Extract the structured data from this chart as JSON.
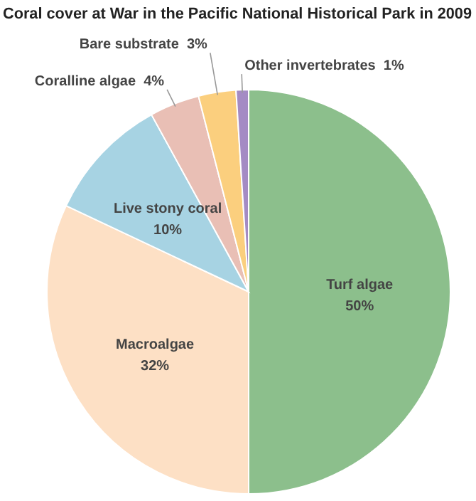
{
  "chart_data": {
    "type": "pie",
    "title": "Coral cover at War in the Pacific National Historical Park in 2009",
    "categories": [
      "Turf algae",
      "Macroalgae",
      "Live stony coral",
      "Coralline algae",
      "Bare substrate",
      "Other invertebrates"
    ],
    "values": [
      50,
      32,
      10,
      4,
      3,
      1
    ],
    "value_labels": [
      "50%",
      "32%",
      "10%",
      "4%",
      "3%",
      "1%"
    ],
    "colors": [
      "#8cbf8c",
      "#fde0c5",
      "#a7d3e3",
      "#e9bfb5",
      "#fbcf7e",
      "#a48bc4"
    ]
  }
}
